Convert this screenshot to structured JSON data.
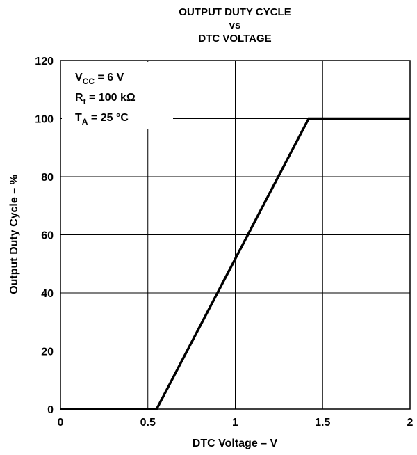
{
  "chart_data": {
    "type": "line",
    "title_lines": [
      "OUTPUT DUTY CYCLE",
      "vs",
      "DTC VOLTAGE"
    ],
    "xlabel": "DTC Voltage – V",
    "ylabel": "Output Duty Cycle – %",
    "xlim": [
      0,
      2
    ],
    "ylim": [
      0,
      120
    ],
    "x_ticks": [
      0,
      0.5,
      1,
      1.5,
      2
    ],
    "x_tick_labels": [
      "0",
      "0.5",
      "1",
      "1.5",
      "2"
    ],
    "y_ticks": [
      0,
      20,
      40,
      60,
      80,
      100,
      120
    ],
    "y_tick_labels": [
      "0",
      "20",
      "40",
      "60",
      "80",
      "100",
      "120"
    ],
    "grid": true,
    "conditions": [
      {
        "main": "V",
        "sub": "CC",
        "rest": " = 6 V"
      },
      {
        "main": "R",
        "sub": "t",
        "rest": " = 100 kΩ"
      },
      {
        "main": "T",
        "sub": "A",
        "rest": " = 25 °C"
      }
    ],
    "series": [
      {
        "x": [
          0,
          0.55,
          1.42,
          2.0
        ],
        "y": [
          0,
          0,
          100,
          100
        ]
      }
    ]
  }
}
